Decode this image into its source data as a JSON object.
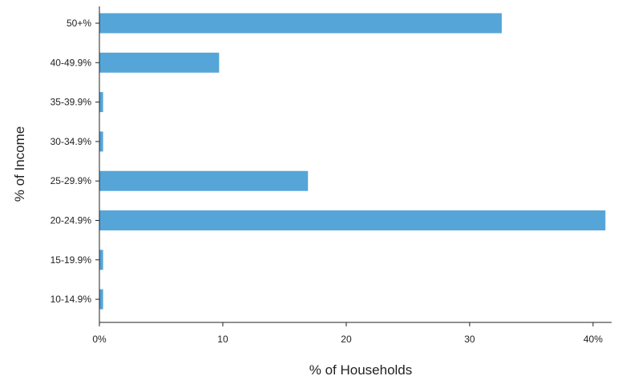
{
  "chart_data": {
    "type": "bar",
    "orientation": "horizontal",
    "title": "",
    "xlabel": "% of Households",
    "ylabel": "% of Income",
    "categories": [
      "50+%",
      "40-49.9%",
      "35-39.9%",
      "30-34.9%",
      "25-29.9%",
      "20-24.9%",
      "15-19.9%",
      "10-14.9%"
    ],
    "values": [
      32.6,
      9.7,
      0.3,
      0.3,
      16.9,
      41.0,
      0.3,
      0.3
    ],
    "xlim": [
      0,
      41.5
    ],
    "xticks": [
      0,
      10,
      20,
      30,
      40
    ],
    "xtick_labels": [
      "0%",
      "10",
      "20",
      "30",
      "40%"
    ],
    "grid": false,
    "legend": "none",
    "bar_color": "#56a5d8"
  }
}
